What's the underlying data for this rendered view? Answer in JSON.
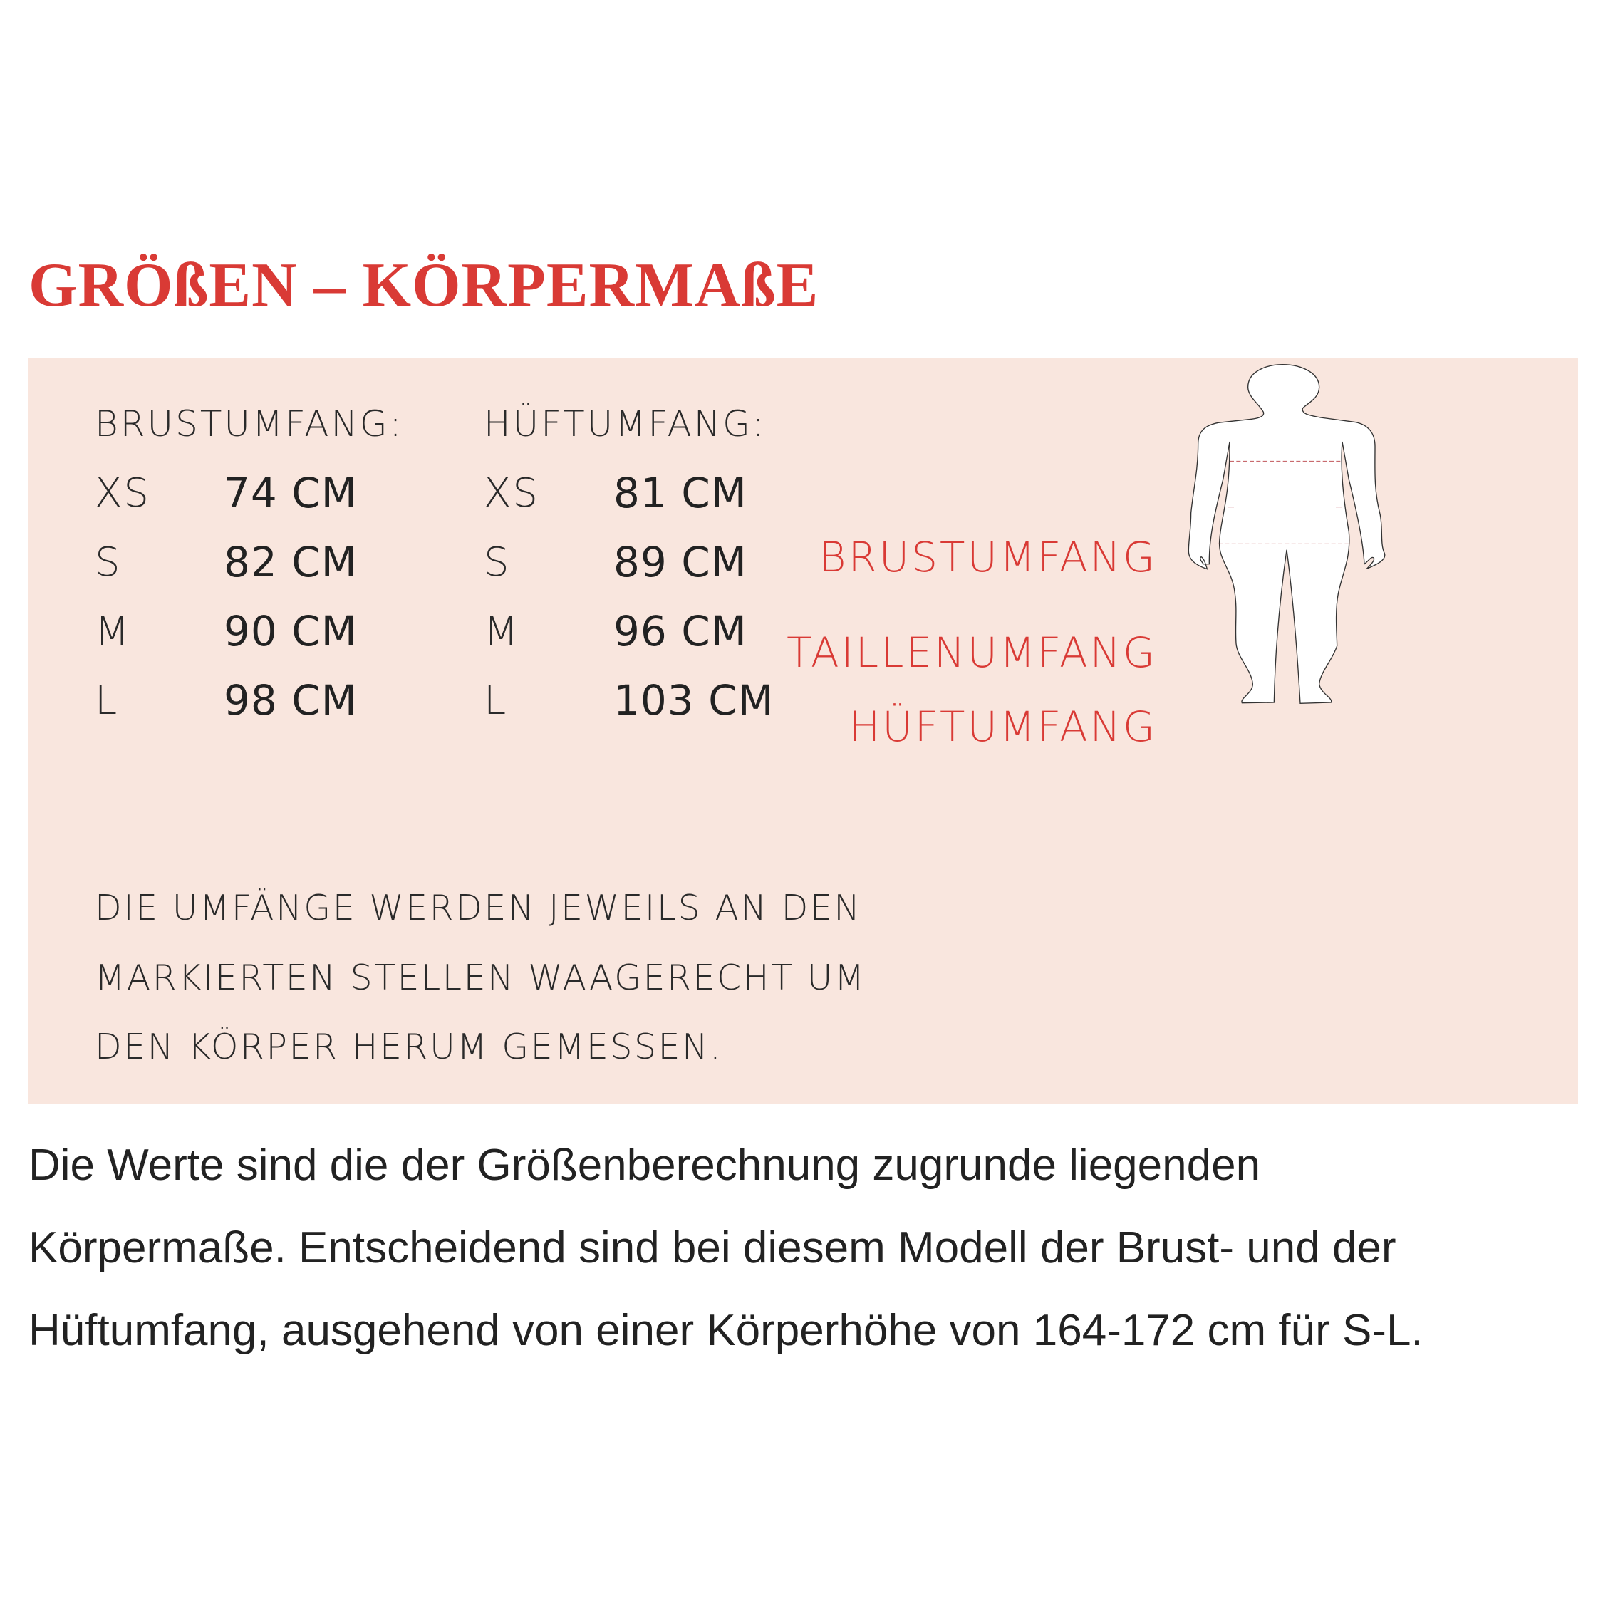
{
  "title": "GRÖßEN – KÖRPERMAßE",
  "colors": {
    "accent": "#d93a35",
    "panel": "#f9e6de",
    "text": "#222222"
  },
  "tables": [
    {
      "header": "BRUSTUMFANG:",
      "rows": [
        {
          "size": "XS",
          "value": "74 CM"
        },
        {
          "size": "S",
          "value": "82 CM"
        },
        {
          "size": "M",
          "value": "90 CM"
        },
        {
          "size": "L",
          "value": "98 CM"
        }
      ]
    },
    {
      "header": "HÜFTUMFANG:",
      "rows": [
        {
          "size": "XS",
          "value": "81 CM"
        },
        {
          "size": "S",
          "value": "89 CM"
        },
        {
          "size": "M",
          "value": "96 CM"
        },
        {
          "size": "L",
          "value": "103 CM"
        }
      ]
    }
  ],
  "figure_labels": {
    "chest": "BRUSTUMFANG",
    "waist": "TAILLENUMFANG",
    "hip": "HÜFTUMFANG"
  },
  "figure_icon": "body-silhouette-icon",
  "note_lines": [
    "DIE UMFÄNGE WERDEN JEWEILS AN DEN",
    "MARKIERTEN STELLEN WAAGERECHT UM",
    "DEN KÖRPER HERUM GEMESSEN."
  ],
  "paragraph_lines": [
    "Die Werte sind die der Größenberechnung zugrunde liegenden",
    "Körpermaße. Entscheidend sind bei diesem Modell der Brust- und der",
    "Hüftumfang, ausgehend von einer Körperhöhe von 164-172 cm für S-L."
  ]
}
